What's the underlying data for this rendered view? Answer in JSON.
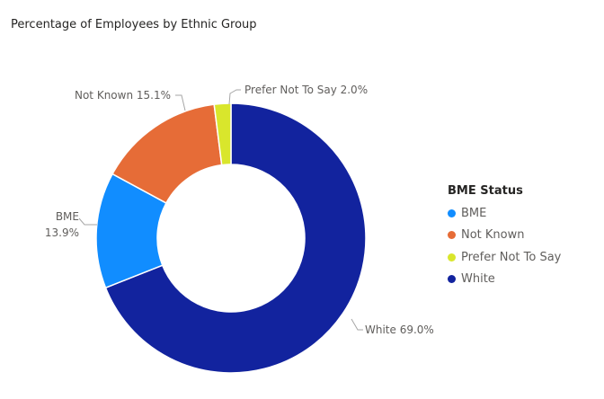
{
  "chart_data": {
    "type": "pie",
    "donut": true,
    "title": "Percentage of Employees by Ethnic Group",
    "legend_title": "BME Status",
    "legend_position": "right",
    "categories": [
      "White",
      "BME",
      "Not Known",
      "Prefer Not To Say"
    ],
    "values": [
      69.0,
      13.9,
      15.1,
      2.0
    ],
    "unit": "%",
    "colors": [
      "#12239e",
      "#118dff",
      "#e66c37",
      "#d9e62c"
    ],
    "data_labels": [
      {
        "name": "White",
        "text": "White 69.0%"
      },
      {
        "name": "BME",
        "text": "BME",
        "text2": "13.9%"
      },
      {
        "name": "Not Known",
        "text": "Not Known 15.1%"
      },
      {
        "name": "Prefer Not To Say",
        "text": "Prefer Not To Say 2.0%"
      }
    ],
    "legend": [
      {
        "label": "BME",
        "color": "#118dff"
      },
      {
        "label": "Not Known",
        "color": "#e66c37"
      },
      {
        "label": "Prefer Not To Say",
        "color": "#d9e62c"
      },
      {
        "label": "White",
        "color": "#12239e"
      }
    ]
  }
}
